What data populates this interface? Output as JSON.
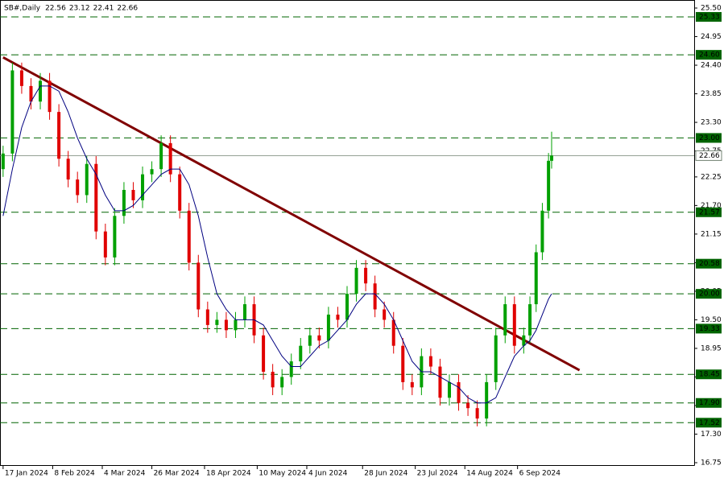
{
  "chart_data": {
    "type": "candlestick",
    "title": "SB#,Daily",
    "header_values": [
      22.56,
      23.12,
      22.41,
      22.66
    ],
    "x": [
      0,
      3,
      6,
      9,
      12,
      15,
      18,
      21,
      24,
      27,
      30,
      33,
      36,
      39,
      42,
      45,
      48,
      51,
      54,
      57,
      60,
      63,
      66,
      69,
      72,
      75,
      78,
      81,
      84,
      87,
      90,
      93,
      96,
      99,
      102,
      105,
      108,
      111,
      114,
      117,
      120,
      123,
      126,
      129,
      132,
      135,
      138,
      141,
      144,
      147,
      150,
      153,
      156,
      159,
      162,
      165,
      168,
      170,
      172,
      174,
      176,
      177
    ],
    "open": [
      22.4,
      22.7,
      24.3,
      24.0,
      23.7,
      24.1,
      23.5,
      22.6,
      22.2,
      21.9,
      22.5,
      21.2,
      20.7,
      21.5,
      22.0,
      21.8,
      22.3,
      22.4,
      22.9,
      22.3,
      21.6,
      20.6,
      19.7,
      19.4,
      19.5,
      19.3,
      19.5,
      19.8,
      19.2,
      18.5,
      18.2,
      18.4,
      18.7,
      19.0,
      19.2,
      19.1,
      19.6,
      19.5,
      20.0,
      20.5,
      20.2,
      19.7,
      19.5,
      19.0,
      18.3,
      18.2,
      18.8,
      18.6,
      18.0,
      18.3,
      17.9,
      17.8,
      17.6,
      18.3,
      19.2,
      19.8,
      19.0,
      19.2,
      19.8,
      20.8,
      21.6,
      22.56
    ],
    "high": [
      22.85,
      24.45,
      24.45,
      24.15,
      24.25,
      24.25,
      23.65,
      22.75,
      22.35,
      22.65,
      22.65,
      21.35,
      21.65,
      22.15,
      22.15,
      22.45,
      22.55,
      23.05,
      23.05,
      22.45,
      21.75,
      20.75,
      19.85,
      19.65,
      19.65,
      19.65,
      19.95,
      19.95,
      19.35,
      18.65,
      18.55,
      18.85,
      19.15,
      19.35,
      19.35,
      19.75,
      19.75,
      20.15,
      20.65,
      20.65,
      20.35,
      19.85,
      19.65,
      19.15,
      18.45,
      18.95,
      18.95,
      18.75,
      18.45,
      18.45,
      18.05,
      17.95,
      18.45,
      19.35,
      19.95,
      19.95,
      19.35,
      19.95,
      20.95,
      21.75,
      22.71,
      23.12
    ],
    "low": [
      22.25,
      22.55,
      23.85,
      23.55,
      23.55,
      23.35,
      22.45,
      22.05,
      21.75,
      21.75,
      21.05,
      20.55,
      20.55,
      21.35,
      21.65,
      21.65,
      22.15,
      22.25,
      22.15,
      21.45,
      20.45,
      19.55,
      19.25,
      19.25,
      19.15,
      19.15,
      19.35,
      19.05,
      18.35,
      18.05,
      18.05,
      18.25,
      18.55,
      18.85,
      18.95,
      18.95,
      19.35,
      19.35,
      19.85,
      20.05,
      19.55,
      19.35,
      18.85,
      18.15,
      18.05,
      18.05,
      18.45,
      17.85,
      17.85,
      17.75,
      17.65,
      17.45,
      17.45,
      18.15,
      19.05,
      18.85,
      18.85,
      19.05,
      19.65,
      20.65,
      21.45,
      22.41
    ],
    "close": [
      22.7,
      24.3,
      24.0,
      23.7,
      24.1,
      23.5,
      22.6,
      22.2,
      21.9,
      22.5,
      21.2,
      20.7,
      21.5,
      22.0,
      21.8,
      22.3,
      22.4,
      22.9,
      22.3,
      21.6,
      20.6,
      19.7,
      19.4,
      19.5,
      19.3,
      19.5,
      19.8,
      19.2,
      18.5,
      18.2,
      18.4,
      18.7,
      19.0,
      19.2,
      19.1,
      19.6,
      19.5,
      20.0,
      20.5,
      20.2,
      19.7,
      19.5,
      19.0,
      18.3,
      18.2,
      18.8,
      18.6,
      18.0,
      18.3,
      17.9,
      17.8,
      17.6,
      18.3,
      19.2,
      19.8,
      19.0,
      19.2,
      19.8,
      20.8,
      21.6,
      22.56,
      22.66
    ],
    "moving_average": {
      "color": "#000080",
      "values": [
        21.5,
        22.4,
        23.2,
        23.7,
        24.0,
        24.0,
        23.9,
        23.5,
        23.0,
        22.6,
        22.3,
        21.9,
        21.6,
        21.6,
        21.7,
        21.9,
        22.1,
        22.3,
        22.4,
        22.4,
        22.1,
        21.5,
        20.7,
        20.0,
        19.7,
        19.5,
        19.5,
        19.5,
        19.4,
        19.1,
        18.8,
        18.6,
        18.6,
        18.8,
        19.0,
        19.1,
        19.3,
        19.5,
        19.8,
        20.0,
        20.0,
        19.8,
        19.5,
        19.1,
        18.7,
        18.5,
        18.5,
        18.4,
        18.3,
        18.2,
        18.0,
        17.9,
        17.9,
        18.0,
        18.4,
        18.8,
        19.0,
        19.1,
        19.3,
        19.6,
        19.9,
        20.0
      ]
    },
    "trendline": {
      "color": "#800000",
      "x": [
        0,
        186
      ],
      "y": [
        24.55,
        18.53
      ]
    },
    "up_color": "#00a000",
    "down_color": "#e00000",
    "levels": {
      "color": "#006400",
      "values": [
        25.33,
        {
          "value": 24.6,
          "label": "24.60"
        },
        {
          "value": 23.0,
          "label": "23.00"
        },
        21.57,
        20.58,
        {
          "value": 20.0,
          "label": "20.00"
        },
        19.33,
        18.45,
        {
          "value": 17.9,
          "label": "17.90"
        },
        17.52
      ]
    },
    "last_price": 22.66,
    "xlim": [
      -1,
      223
    ],
    "xticks": [
      {
        "value": 0,
        "label": "17 Jan 2024"
      },
      {
        "value": 16,
        "label": "8 Feb 2024"
      },
      {
        "value": 32,
        "label": "4 Mar 2024"
      },
      {
        "value": 48,
        "label": "26 Mar 2024"
      },
      {
        "value": 65,
        "label": "18 Apr 2024"
      },
      {
        "value": 82,
        "label": "10 May 2024"
      },
      {
        "value": 98,
        "label": "4 Jun 2024"
      },
      {
        "value": 116,
        "label": "28 Jun 2024"
      },
      {
        "value": 133,
        "label": "23 Jul 2024"
      },
      {
        "value": 149,
        "label": "14 Aug 2024"
      },
      {
        "value": 166,
        "label": "6 Sep 2024"
      }
    ],
    "ylim": [
      16.75,
      25.5
    ],
    "yticks": [
      {
        "value": 25.5,
        "label": "25.50"
      },
      24.95,
      {
        "value": 24.4,
        "label": "24.40"
      },
      23.85,
      {
        "value": 23.3,
        "label": "23.30"
      },
      22.75,
      22.25,
      {
        "value": 21.7,
        "label": "21.70"
      },
      21.15,
      {
        "value": 20.6,
        "label": "20.60"
      },
      20.05,
      {
        "value": 19.5,
        "label": "19.50"
      },
      18.95,
      {
        "value": 18.4,
        "label": "18.40"
      },
      17.85,
      {
        "value": 17.3,
        "label": "17.30"
      },
      16.75
    ]
  }
}
